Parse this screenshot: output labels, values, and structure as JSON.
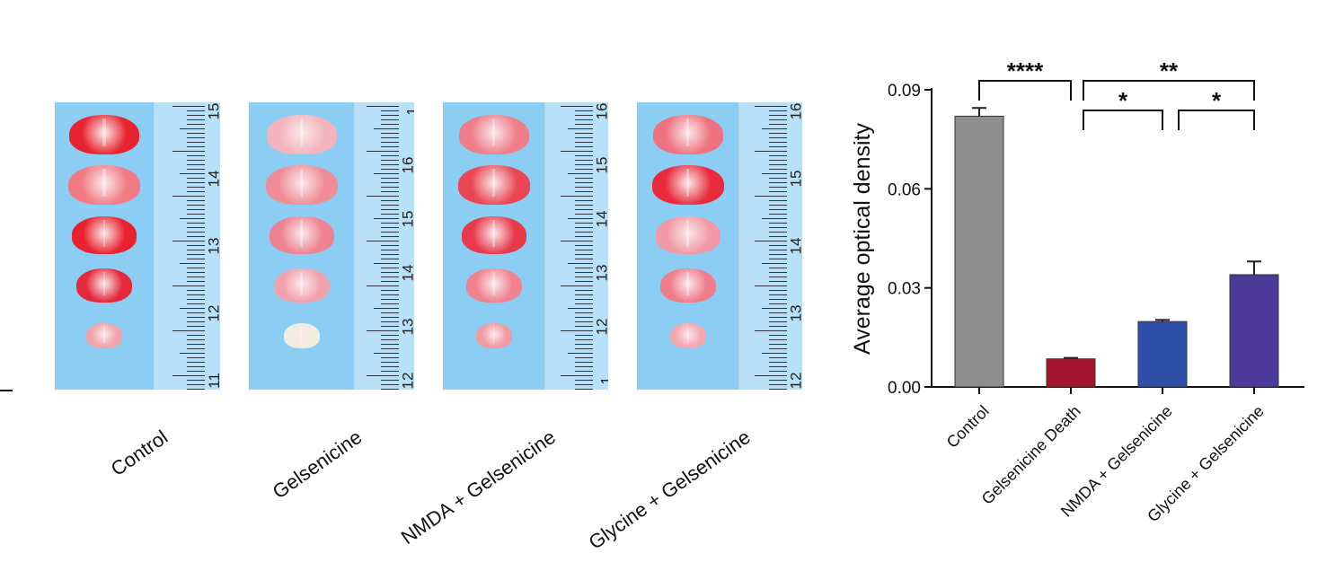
{
  "panels": [
    {
      "label": "Control",
      "ruler_numbers": [
        "15",
        "14",
        "13",
        "12",
        "11"
      ],
      "slice_colors": [
        "#e8232f",
        "#f17a84",
        "#e8232f",
        "#e5283a",
        "#f1a4ab"
      ]
    },
    {
      "label": "Gelsenicine",
      "ruler_numbers": [
        "1",
        "16",
        "15",
        "14",
        "13",
        "12"
      ],
      "slice_colors": [
        "#f3b4bb",
        "#ef8c98",
        "#ee8290",
        "#f2a2ad",
        "#f0ece0"
      ]
    },
    {
      "label": "NMDA + Gelsenicine",
      "ruler_numbers": [
        "16",
        "15",
        "14",
        "13",
        "12",
        "1"
      ],
      "slice_colors": [
        "#ef7d8a",
        "#ea4655",
        "#e83a4b",
        "#f08290",
        "#f19aa2"
      ]
    },
    {
      "label": "Glycine + Gelsenicine",
      "ruler_numbers": [
        "16",
        "15",
        "14",
        "13",
        "12"
      ],
      "slice_colors": [
        "#ee7280",
        "#e82a3c",
        "#f19aa5",
        "#ef7d8b",
        "#f4a7b0"
      ]
    }
  ],
  "chart_data": {
    "type": "bar",
    "title": "",
    "xlabel": "",
    "ylabel": "Average optical density",
    "ylim": [
      0,
      0.09
    ],
    "yticks": [
      "0.00",
      "0.03",
      "0.06",
      "0.09"
    ],
    "categories": [
      "Control",
      "Gelsenicine Death",
      "NMDA + Gelsenicine",
      "Glycine + Gelsenicine"
    ],
    "values": [
      0.082,
      0.0085,
      0.0198,
      0.034
    ],
    "errors": [
      0.0025,
      0.0003,
      0.0005,
      0.004
    ],
    "colors": [
      "#8f8f8f",
      "#a5142f",
      "#2f4fa8",
      "#4b3a9a"
    ],
    "significance": [
      {
        "from": 0,
        "to": 1,
        "label": "****",
        "level": 0
      },
      {
        "from": 1,
        "to": 3,
        "label": "**",
        "level": 0
      },
      {
        "from": 1,
        "to": 2,
        "label": "*",
        "level": 1
      },
      {
        "from": 2,
        "to": 3,
        "label": "*",
        "level": 1
      }
    ],
    "grid": false,
    "legend": "none"
  }
}
